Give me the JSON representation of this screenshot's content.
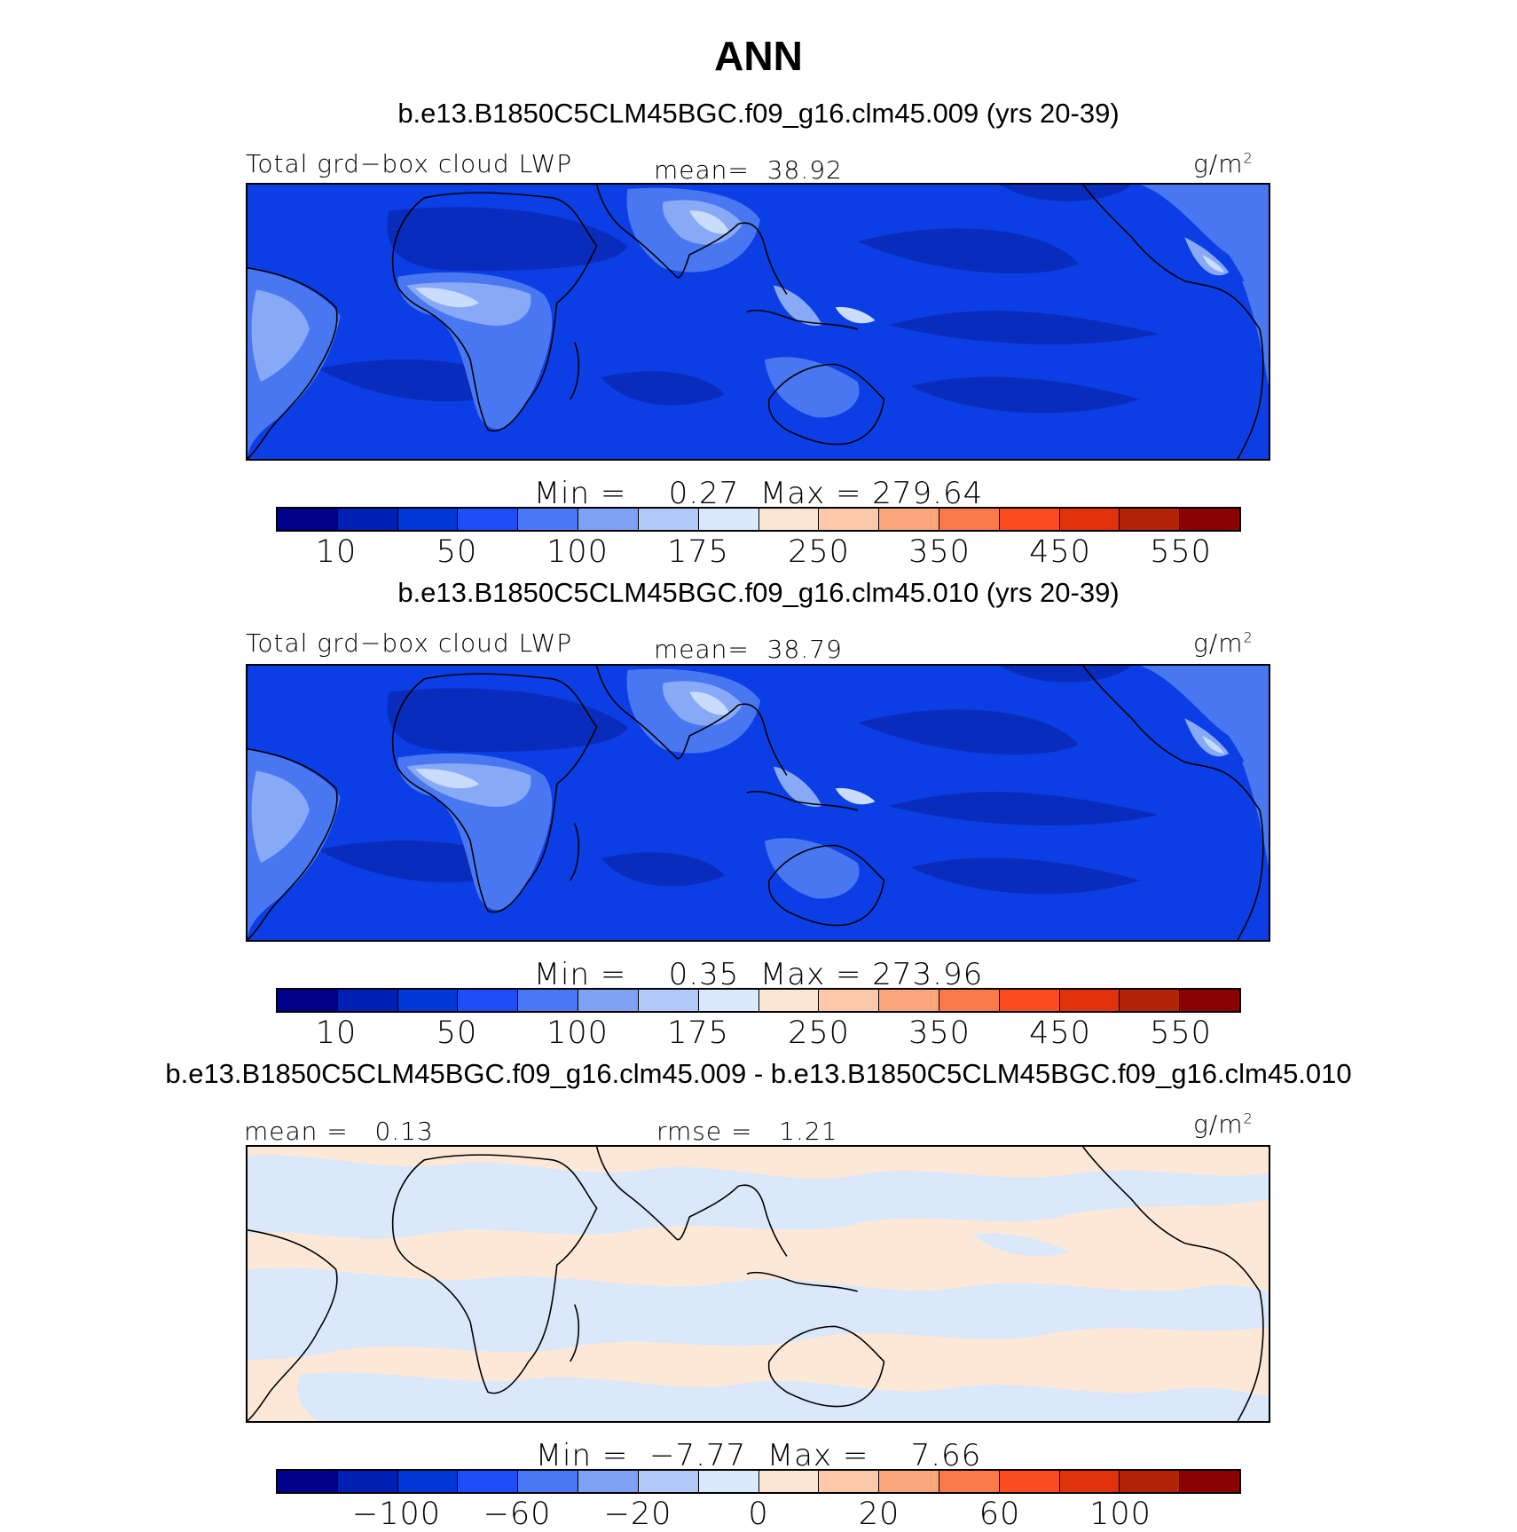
{
  "title": "ANN",
  "colors": {
    "cb": [
      "#00008b",
      "#0020b4",
      "#0038d8",
      "#1c4ff7",
      "#4a78f5",
      "#7fa2f7",
      "#b1c8f9",
      "#dae8fb",
      "#fbe6d3",
      "#fbc8aa",
      "#fba57c",
      "#fb7a4a",
      "#fa4d1f",
      "#e0320b",
      "#b32407",
      "#8b0000"
    ],
    "ocean": "#0b3ee4",
    "deep": "#0a2cbd",
    "landA": "#4977f1",
    "landB": "#88aaf6",
    "landC": "#c9dcfb",
    "diffA": "#fde8d8",
    "diffB": "#dbe8fa"
  },
  "panels": [
    {
      "case": "b.e13.B1850C5CLM45BGC.f09_g16.clm45.009 (yrs 20-39)",
      "left": "Total grd−box cloud LWP",
      "center": "mean=  38.92",
      "unit": "g/m",
      "unit_sup": "2",
      "minmax": "Min =    0.27  Max = 279.64",
      "ticks": [
        "10",
        "50",
        "100",
        "175",
        "250",
        "350",
        "450",
        "550"
      ],
      "mode": "field"
    },
    {
      "case": "b.e13.B1850C5CLM45BGC.f09_g16.clm45.010 (yrs 20-39)",
      "left": "Total grd−box cloud LWP",
      "center": "mean=  38.79",
      "unit": "g/m",
      "unit_sup": "2",
      "minmax": "Min =    0.35  Max = 273.96",
      "ticks": [
        "10",
        "50",
        "100",
        "175",
        "250",
        "350",
        "450",
        "550"
      ],
      "mode": "field"
    },
    {
      "case": "b.e13.B1850C5CLM45BGC.f09_g16.clm45.009 - b.e13.B1850C5CLM45BGC.f09_g16.clm45.010",
      "left": "mean =   0.13",
      "center": "rmse =   1.21",
      "unit": "g/m",
      "unit_sup": "2",
      "minmax": "Min =  −7.77  Max =    7.66",
      "ticks": [
        "−100",
        "−60",
        "−20",
        "0",
        "20",
        "60",
        "100"
      ],
      "mode": "diff"
    }
  ]
}
